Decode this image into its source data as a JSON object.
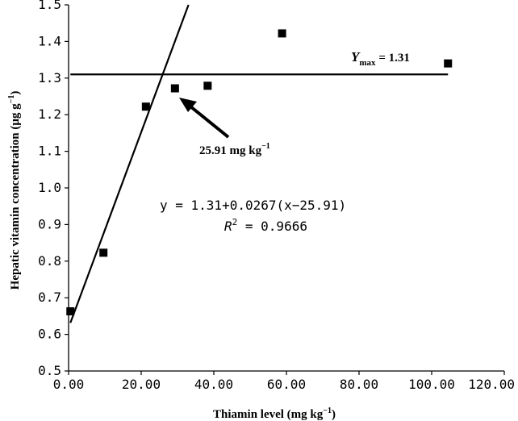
{
  "chart_data": {
    "type": "scatter",
    "title": "",
    "xlabel": "Thiamin level (mg kg",
    "xlabel_sup": "−1",
    "xlabel_end": ")",
    "ylabel": "Hepatic vitamin concentration (μg g",
    "ylabel_sup": "−1",
    "ylabel_end": ")",
    "xlim": [
      0,
      120
    ],
    "ylim": [
      0.5,
      1.5
    ],
    "x_ticks": [
      0,
      20,
      40,
      60,
      80,
      100,
      120
    ],
    "x_tick_labels": [
      "0.00",
      "20.00",
      "40.00",
      "60.00",
      "80.00",
      "100.00",
      "120.00"
    ],
    "y_ticks": [
      0.5,
      0.6,
      0.7,
      0.8,
      0.9,
      1.0,
      1.1,
      1.2,
      1.3,
      1.4,
      1.5
    ],
    "y_tick_labels": [
      "0.5",
      "0.6",
      "0.7",
      "0.8",
      "0.9",
      "1.0",
      "1.1",
      "1.2",
      "1.3",
      "1.4",
      "1.5"
    ],
    "grid": false,
    "series": [
      {
        "marker": "square",
        "color": "#000000",
        "points": [
          {
            "x": 0.5,
            "y": 0.663
          },
          {
            "x": 9.6,
            "y": 0.823
          },
          {
            "x": 21.3,
            "y": 1.222
          },
          {
            "x": 29.3,
            "y": 1.272
          },
          {
            "x": 38.3,
            "y": 1.279
          },
          {
            "x": 58.8,
            "y": 1.422
          },
          {
            "x": 104.5,
            "y": 1.34
          }
        ]
      }
    ],
    "fit": {
      "breakpoint": 25.91,
      "plateau": 1.31,
      "slope": 0.0267,
      "line_x_range": [
        0.5,
        104.5
      ]
    },
    "annotations": {
      "ymax_label": "Y",
      "ymax_sub": "max",
      "ymax_value": " = 1.31",
      "breakpoint_label": "25.91 mg kg",
      "breakpoint_sup": "−1",
      "equation_line1": "y = 1.31+0.0267(x−25.91)",
      "equation_r2_label": "R",
      "equation_r2_sup": "2",
      "equation_r2_value": " = 0.9666"
    }
  }
}
